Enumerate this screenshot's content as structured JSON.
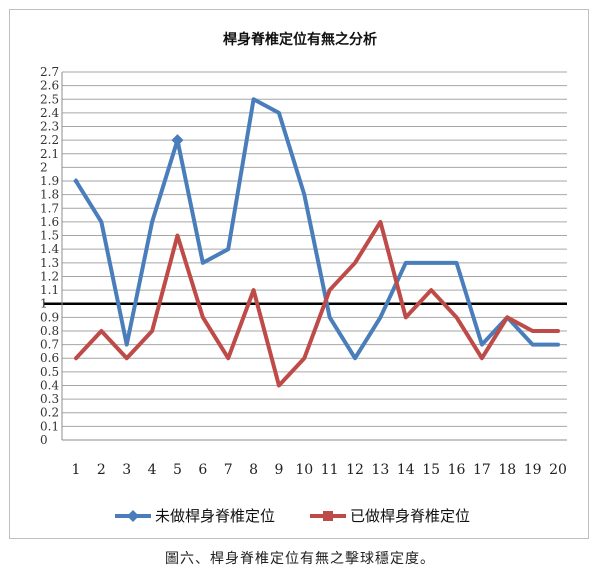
{
  "chart_data": {
    "type": "line",
    "title": "桿身脊椎定位有無之分析",
    "x": [
      1,
      2,
      3,
      4,
      5,
      6,
      7,
      8,
      9,
      10,
      11,
      12,
      13,
      14,
      15,
      16,
      17,
      18,
      19,
      20
    ],
    "series": [
      {
        "name": "未做桿身脊椎定位",
        "color": "#4a7ebb",
        "marker": "diamond",
        "values": [
          1.9,
          1.6,
          0.7,
          1.6,
          2.2,
          1.3,
          1.4,
          2.5,
          2.4,
          1.8,
          0.9,
          0.6,
          0.9,
          1.3,
          1.3,
          1.3,
          0.7,
          0.9,
          0.7,
          0.7
        ]
      },
      {
        "name": "已做桿身脊椎定位",
        "color": "#be4b48",
        "marker": "square",
        "values": [
          0.6,
          0.8,
          0.6,
          0.8,
          1.5,
          0.9,
          0.6,
          1.1,
          0.4,
          0.6,
          1.1,
          1.3,
          1.6,
          0.9,
          1.1,
          0.9,
          0.6,
          0.9,
          0.8,
          0.8
        ]
      }
    ],
    "ylim": [
      0,
      2.7
    ],
    "ytick_labels": [
      "0",
      "0.1",
      "0.2",
      "0.3",
      "0.4",
      "0.5",
      "0.6",
      "0.7",
      "0.8",
      "0.9",
      "1",
      "1.1",
      "1.2",
      "1.3",
      "1.4",
      "1.5",
      "1.6",
      "1.7",
      "1.8",
      "1.9",
      "2",
      "2.1",
      "2.2",
      "2.3",
      "2.4",
      "2.5",
      "2.6",
      "2.7"
    ],
    "reference_line": 1,
    "grid": true,
    "legend_position": "bottom"
  },
  "caption": "圖六、桿身脊椎定位有無之擊球穩定度。"
}
